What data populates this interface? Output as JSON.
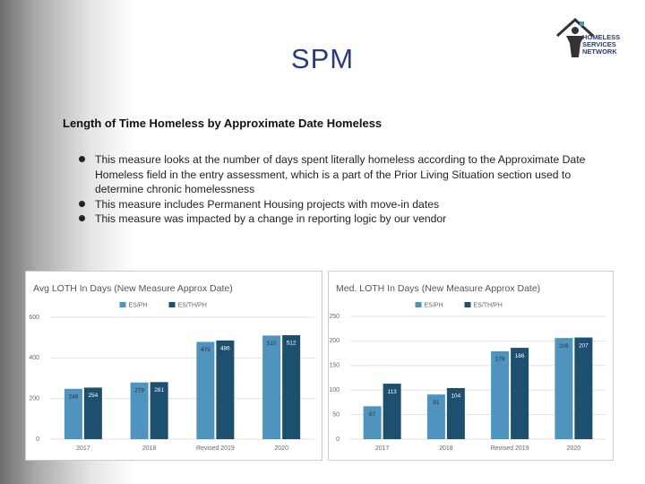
{
  "slide": {
    "title": "SPM",
    "heading": "Length of Time Homeless by Approximate Date Homeless",
    "bullets": [
      "This measure looks at the number of days spent literally homeless according to the Approximate Date Homeless field in the entry assessment, which is a part of the Prior Living Situation section used to determine chronic homelessness",
      "This measure includes Permanent Housing projects with move-in dates",
      "This measure was impacted by a change in reporting logic by our vendor"
    ],
    "logo": [
      "HOMELESS",
      "SERVICES",
      "NETWORK"
    ]
  },
  "chart_data": [
    {
      "type": "bar",
      "title": "Avg LOTH In Days (New Measure Approx Date)",
      "categories": [
        "2017",
        "2018",
        "Revised 2019",
        "2020"
      ],
      "series": [
        {
          "name": "ES/PH",
          "color": "#4f93bf",
          "values": [
            248,
            279,
            479,
            510
          ]
        },
        {
          "name": "ES/TH/PH",
          "color": "#1d4f6e",
          "values": [
            254,
            281,
            486,
            512
          ]
        }
      ],
      "ylim": [
        0,
        600
      ],
      "yticks": [
        0,
        200,
        400,
        600
      ],
      "grid": true
    },
    {
      "type": "bar",
      "title": "Med. LOTH In Days (New Measure Approx Date)",
      "categories": [
        "2017",
        "2018",
        "Revised 2019",
        "2020"
      ],
      "series": [
        {
          "name": "ES/PH",
          "color": "#4f93bf",
          "values": [
            67,
            91,
            179,
            206
          ]
        },
        {
          "name": "ES/TH/PH",
          "color": "#1d4f6e",
          "values": [
            113,
            104,
            186,
            207
          ]
        }
      ],
      "ylim": [
        0,
        250
      ],
      "yticks": [
        0,
        50,
        100,
        150,
        200,
        250
      ],
      "grid": true
    }
  ]
}
